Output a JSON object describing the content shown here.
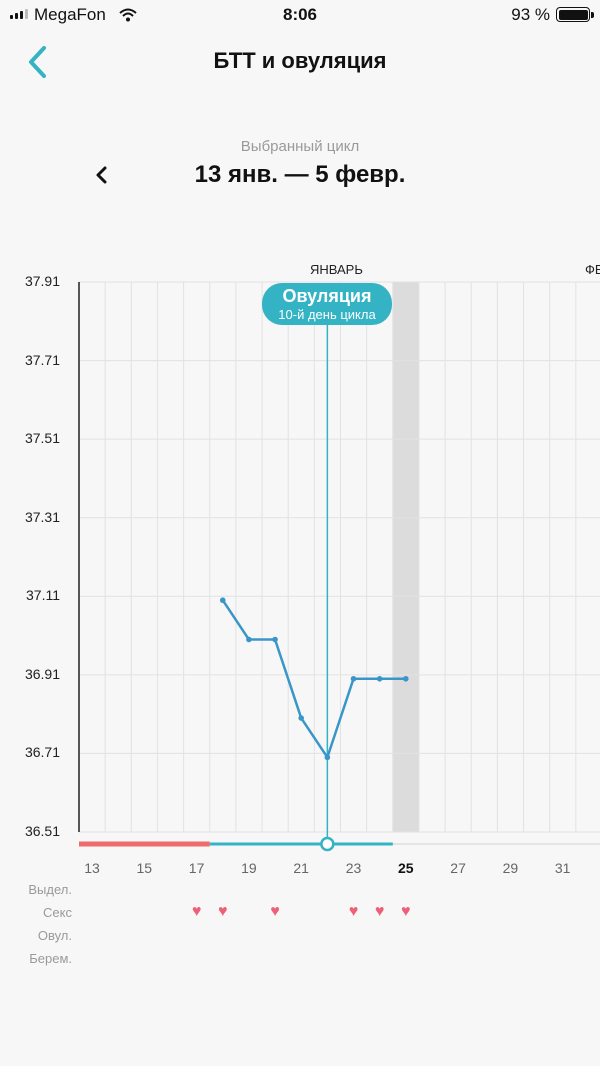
{
  "status_bar": {
    "carrier": "MegaFon",
    "time": "8:06",
    "battery": "93 %"
  },
  "header": {
    "title": "БТТ и овуляция",
    "back_icon": "chevron-left-icon"
  },
  "cycle": {
    "caption": "Выбранный цикл",
    "range": "13 янв. — 5 февр.",
    "prev_icon": "chevron-left-icon"
  },
  "ovulation": {
    "label": "Овуляция",
    "sublabel": "10-й день цикла"
  },
  "chart_data": {
    "type": "line",
    "month_labels": [
      "ЯНВАРЬ",
      "ФЕ"
    ],
    "y_ticks": [
      "37.91",
      "37.71",
      "37.51",
      "37.31",
      "37.11",
      "36.91",
      "36.71",
      "36.51"
    ],
    "ylim": [
      36.51,
      37.91
    ],
    "x_tick_labels": [
      "13",
      "15",
      "17",
      "19",
      "21",
      "23",
      "25",
      "27",
      "29",
      "31"
    ],
    "today_label": "25",
    "x": [
      18,
      19,
      20,
      21,
      22,
      23,
      24,
      25
    ],
    "y": [
      37.1,
      37.0,
      37.0,
      36.8,
      36.7,
      36.9,
      36.9,
      36.9
    ],
    "line_color": "#3a96c8",
    "ovulation_day": 22,
    "period_days": [
      13,
      17
    ],
    "grid": true
  },
  "rows": {
    "labels": [
      "Выдел.",
      "Секс",
      "Овул.",
      "Берем."
    ],
    "sex_days": [
      17,
      18,
      20,
      23,
      24,
      25
    ]
  },
  "colors": {
    "accent": "#33b3c4",
    "period": "#ef6b6b",
    "heart": "#ee5f78",
    "today_band": "#dcdcdc"
  }
}
